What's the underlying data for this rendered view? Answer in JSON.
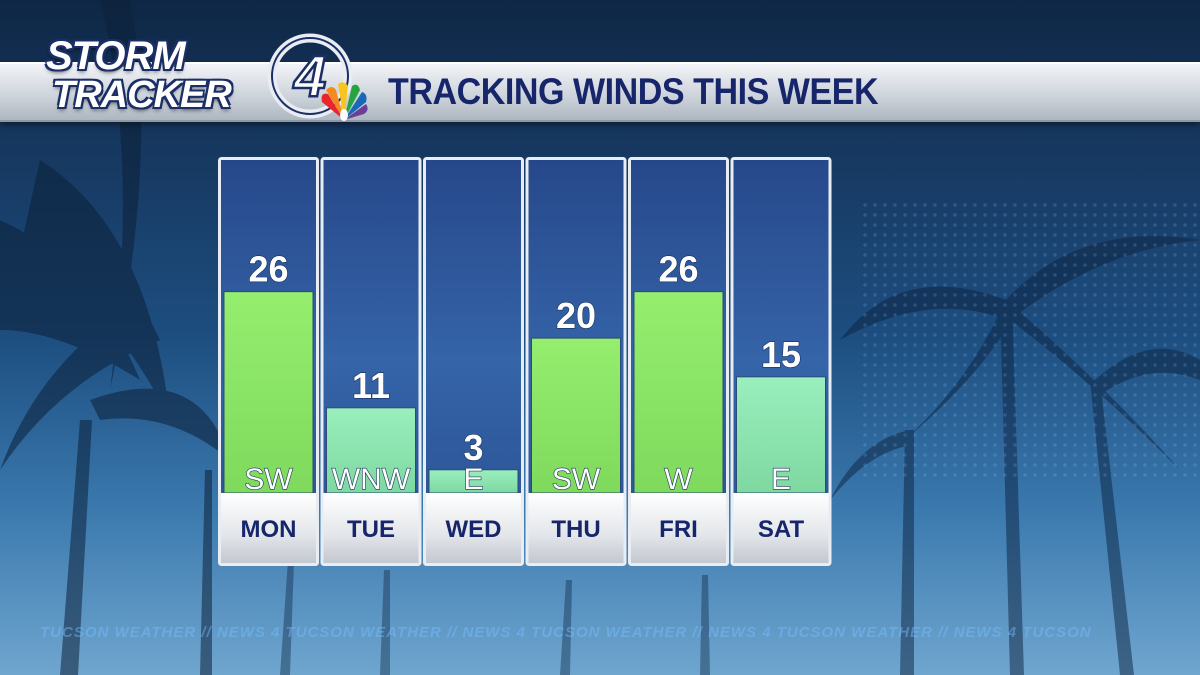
{
  "header": {
    "logo_line1": "STORM",
    "logo_line2": "TRACKER",
    "logo_number": "4",
    "title": "TRACKING WINDS THIS WEEK"
  },
  "footer": {
    "ticker": "TUCSON  WEATHER  //  NEWS 4 TUCSON  WEATHER  //  NEWS 4 TUCSON  WEATHER  //  NEWS 4 TUCSON  WEATHER  //  NEWS 4 TUCSON"
  },
  "colors": {
    "bar_strong": "#8ee86a",
    "bar_light": "#8fe6b4",
    "column_top": "#2a4f8e",
    "column_bottom": "#3e6fb5",
    "label_text": "#17266b"
  },
  "chart_data": {
    "type": "bar",
    "categories": [
      "MON",
      "TUE",
      "WED",
      "THU",
      "FRI",
      "SAT"
    ],
    "values": [
      26,
      11,
      3,
      20,
      26,
      15
    ],
    "directions": [
      "SW",
      "WNW",
      "E",
      "SW",
      "W",
      "E"
    ],
    "ylim": [
      0,
      43
    ],
    "title": "TRACKING WINDS THIS WEEK",
    "xlabel": "",
    "ylabel": "",
    "grid": false
  }
}
